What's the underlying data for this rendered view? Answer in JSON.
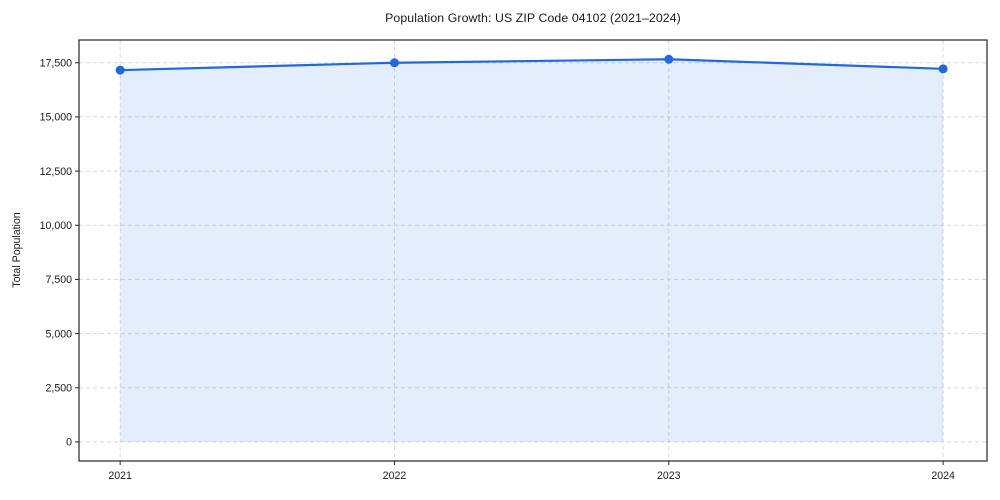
{
  "chart_data": {
    "type": "area",
    "title": "Population Growth: US ZIP Code 04102 (2021–2024)",
    "xlabel": "",
    "ylabel": "Total Population",
    "x": [
      2021,
      2022,
      2023,
      2024
    ],
    "values": [
      17160,
      17500,
      17660,
      17220
    ],
    "fill_baseline": 0,
    "xticks": [
      2021,
      2022,
      2023,
      2024
    ],
    "xtick_labels": [
      "2021",
      "2022",
      "2023",
      "2024"
    ],
    "yticks": [
      0,
      2500,
      5000,
      7500,
      10000,
      12500,
      15000,
      17500
    ],
    "ytick_labels": [
      "0",
      "2,500",
      "5,000",
      "7,500",
      "10,000",
      "12,500",
      "15,000",
      "17,500"
    ],
    "xlim": [
      2020.85,
      2024.16
    ],
    "ylim": [
      -880,
      18550
    ],
    "grid": true,
    "grid_style": "dashed",
    "legend": "none",
    "marker": "circle",
    "colors": {
      "line": "#2068E0",
      "fill": "rgba(32,104,224,0.12)",
      "grid": "#D8D8D8",
      "spine": "#262626",
      "text": "#1a1a1a",
      "background": "#ffffff"
    }
  }
}
